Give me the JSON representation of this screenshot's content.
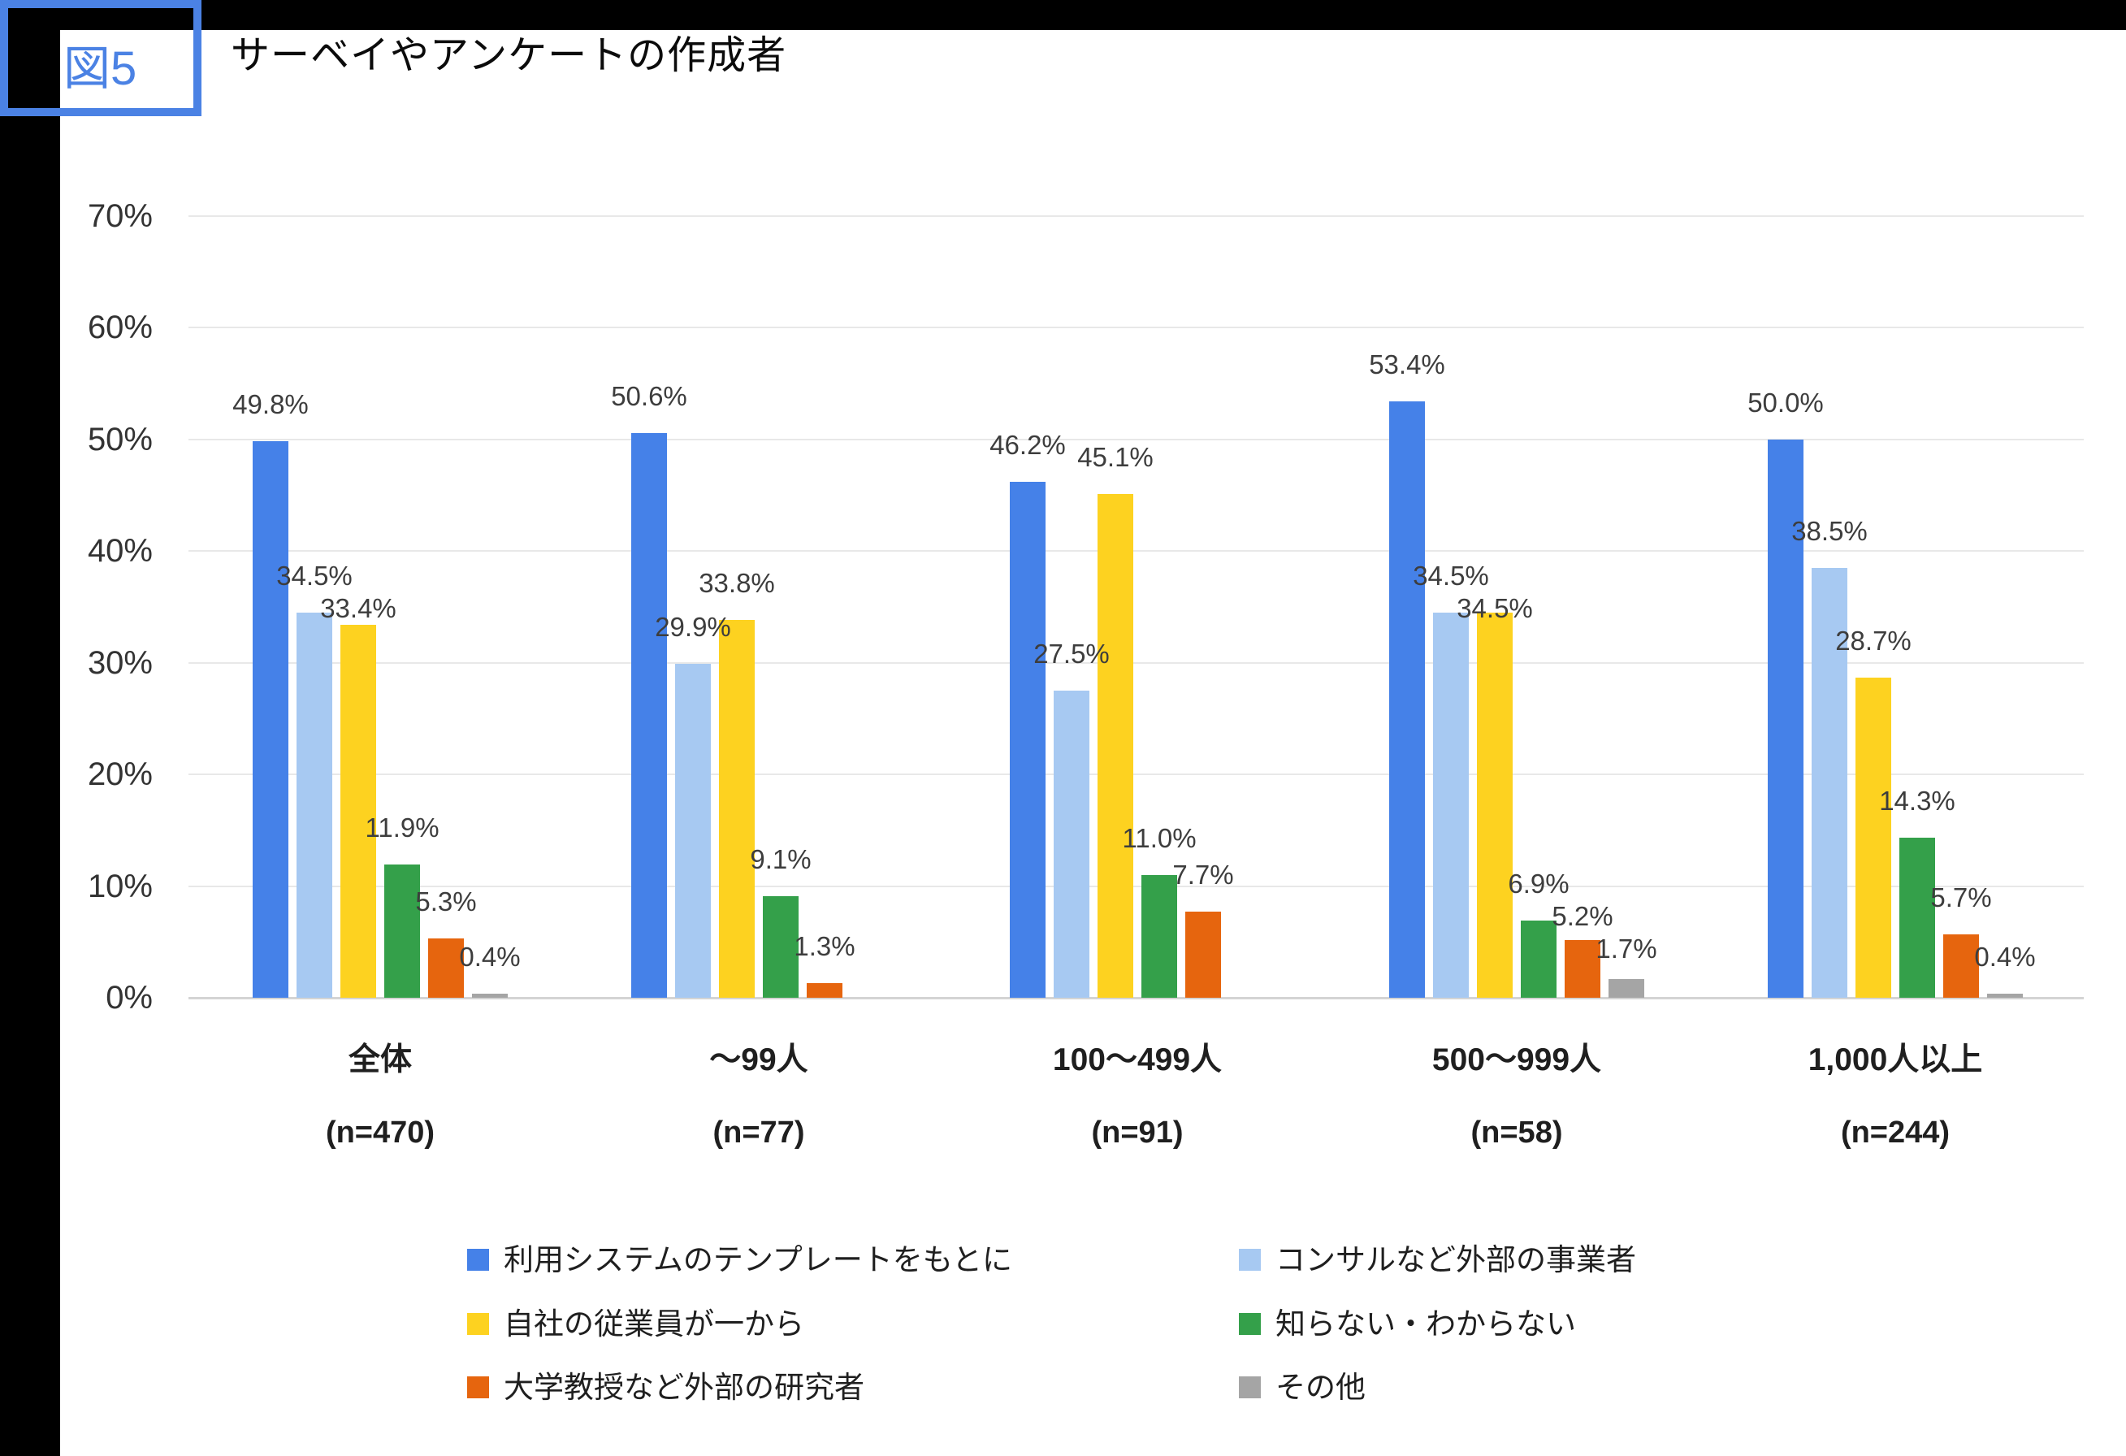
{
  "figure": {
    "badge_label": "図5",
    "title": "サーベイやアンケートの作成者"
  },
  "chart_data": {
    "type": "bar",
    "title": "サーベイやアンケートの作成者",
    "categories": [
      "全体",
      "～99人",
      "100～499人",
      "500～999人",
      "1,000人以上"
    ],
    "category_sublabels": [
      "(n=470)",
      "(n=77)",
      "(n=91)",
      "(n=58)",
      "(n=244)"
    ],
    "series": [
      {
        "name": "利用システムのテンプレートをもとに",
        "color": "#4581e8",
        "values": [
          49.8,
          50.6,
          46.2,
          53.4,
          50.0
        ]
      },
      {
        "name": "コンサルなど外部の事業者",
        "color": "#a7c9f2",
        "values": [
          34.5,
          29.9,
          27.5,
          34.5,
          38.5
        ]
      },
      {
        "name": "自社の従業員が一から",
        "color": "#fdd220",
        "values": [
          33.4,
          33.8,
          45.1,
          34.5,
          28.7
        ]
      },
      {
        "name": "知らない・わからない",
        "color": "#34a04a",
        "values": [
          11.9,
          9.1,
          11.0,
          6.9,
          14.3
        ]
      },
      {
        "name": "大学教授など外部の研究者",
        "color": "#e6650e",
        "values": [
          5.3,
          1.3,
          7.7,
          5.2,
          5.7
        ]
      },
      {
        "name": "その他",
        "color": "#a5a5a5",
        "values": [
          0.4,
          null,
          null,
          1.7,
          0.4
        ]
      }
    ],
    "value_labels": [
      [
        "49.8%",
        "50.6%",
        "46.2%",
        "53.4%",
        "50.0%"
      ],
      [
        "34.5%",
        "29.9%",
        "27.5%",
        "34.5%",
        "38.5%"
      ],
      [
        "33.4%",
        "33.8%",
        "45.1%",
        "34.5%",
        "28.7%"
      ],
      [
        "11.9%",
        "9.1%",
        "11.0%",
        "6.9%",
        "14.3%"
      ],
      [
        "5.3%",
        "1.3%",
        "7.7%",
        "5.2%",
        "5.7%"
      ],
      [
        "0.4%",
        null,
        null,
        "1.7%",
        "0.4%"
      ]
    ],
    "yticks": [
      "0%",
      "10%",
      "20%",
      "30%",
      "40%",
      "50%",
      "60%",
      "70%"
    ],
    "ylim": [
      0,
      70
    ],
    "ytick_step": 10,
    "grid": true,
    "legend_position": "bottom",
    "legend_columns": 2
  },
  "colors": {
    "badge_border": "#4b82e4",
    "badge_text": "#4b82e4",
    "edge_bars": "#000000",
    "grid": "#e8e8e8",
    "baseline": "#d4d4d4",
    "value_label": "#3d3d3d",
    "axis_tick": "#333333",
    "category_label": "#1f1f1f",
    "legend_text": "#1f1f1f",
    "title_text": "#0b0b0b"
  }
}
